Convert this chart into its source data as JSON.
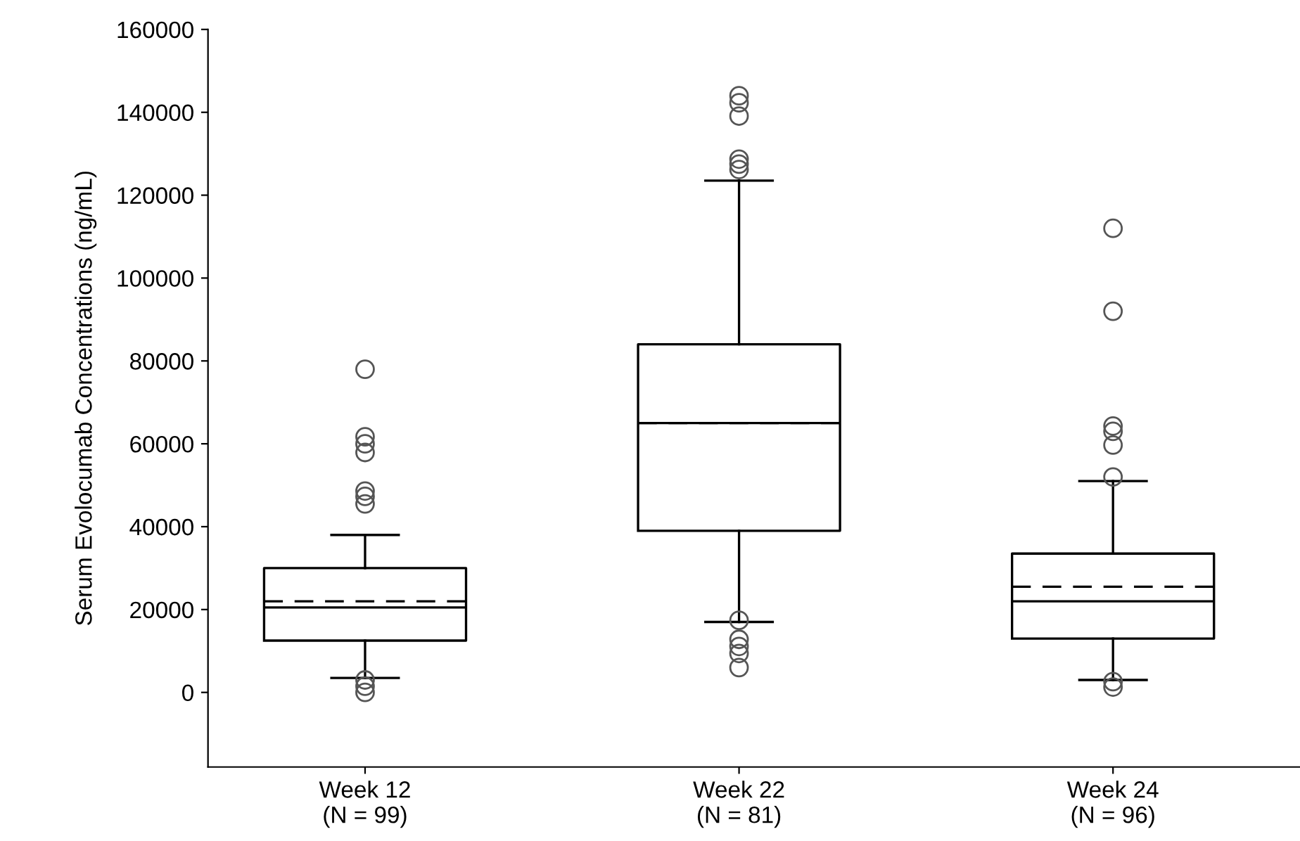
{
  "chart_data": {
    "type": "box",
    "ylabel": "Serum Evolocumab Concentrations (ng/mL)",
    "categories": [
      "Week 12\n(N = 99)",
      "Week 22\n(N = 81)",
      "Week 24\n(N = 96)"
    ],
    "boxes": [
      {
        "low": 3500,
        "q1": 12500,
        "median": 20500,
        "q3": 30000,
        "high": 38000,
        "mean": 22000,
        "outliers": [
          78000,
          61700,
          60000,
          57900,
          48600,
          47300,
          45500,
          3000,
          1500,
          0
        ]
      },
      {
        "low": 17000,
        "q1": 39000,
        "median": 65000,
        "q3": 84000,
        "high": 123500,
        "mean": 65000,
        "outliers": [
          144000,
          142300,
          139100,
          128700,
          127500,
          126200,
          17400,
          12800,
          11100,
          9400,
          6000
        ]
      },
      {
        "low": 3000,
        "q1": 13000,
        "median": 22000,
        "q3": 33500,
        "high": 51000,
        "mean": 25500,
        "outliers": [
          112000,
          92000,
          64300,
          63000,
          59700,
          52000,
          2600,
          1300
        ]
      }
    ],
    "ylim": [
      -18000,
      160000
    ],
    "yticks": [
      0,
      20000,
      40000,
      60000,
      80000,
      100000,
      120000,
      140000,
      160000
    ],
    "marker": "circle",
    "grid": false,
    "legend": false
  }
}
